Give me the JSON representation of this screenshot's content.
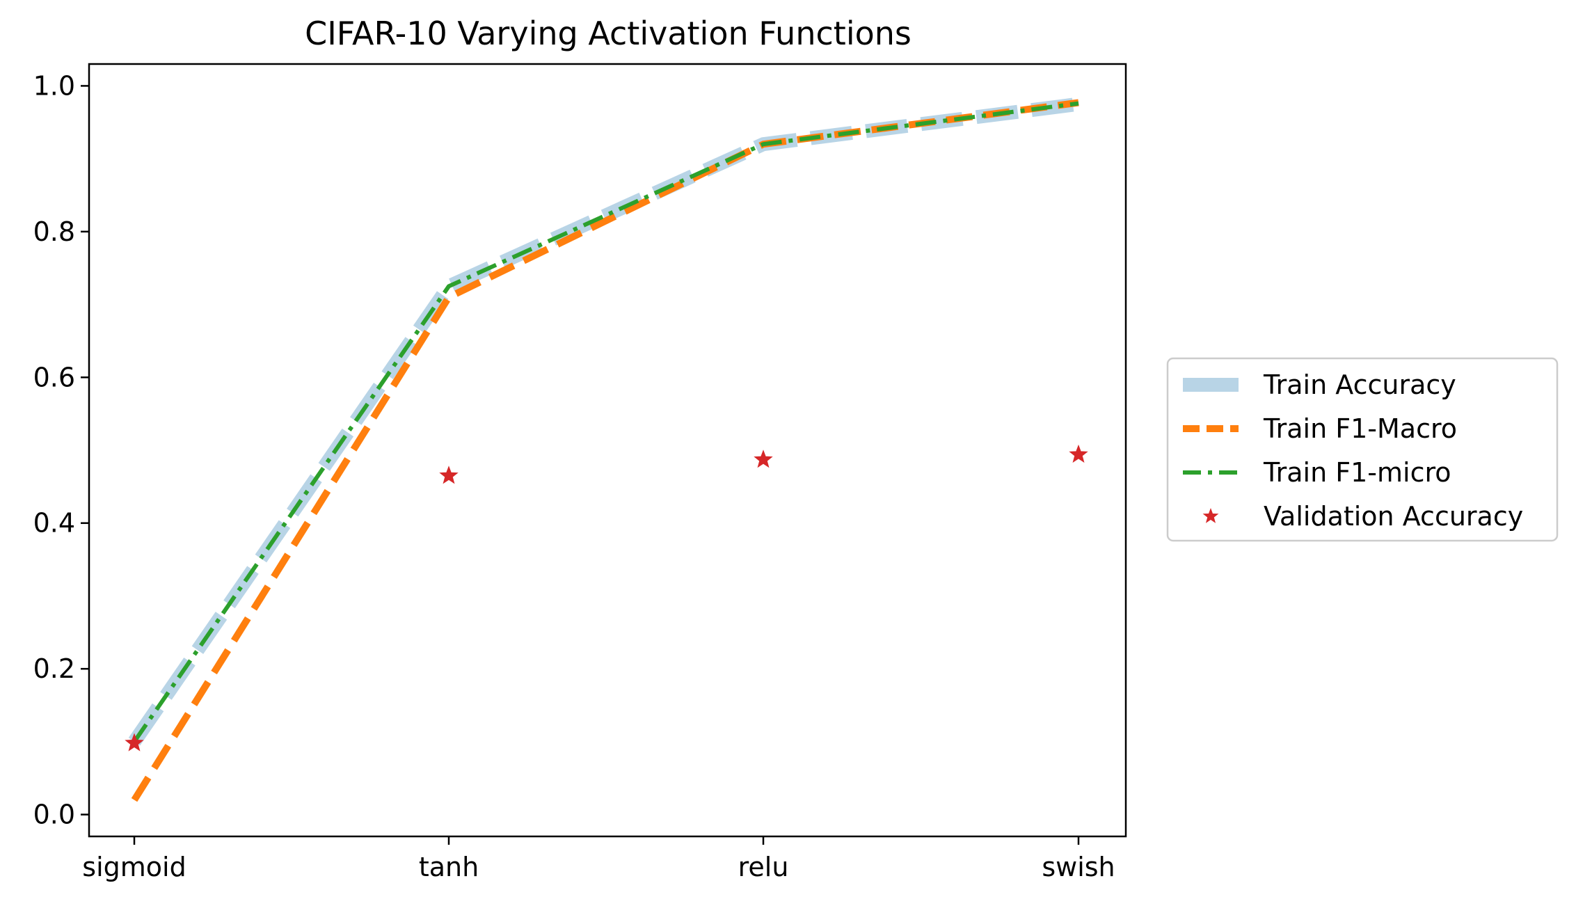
{
  "chart_data": {
    "type": "line",
    "title": "CIFAR-10 Varying Activation Functions",
    "xlabel": "",
    "ylabel": "",
    "categories": [
      "sigmoid",
      "tanh",
      "relu",
      "swish"
    ],
    "ylim": [
      -0.03,
      1.03
    ],
    "yticks": [
      "0.0",
      "0.2",
      "0.4",
      "0.6",
      "0.8",
      "1.0"
    ],
    "grid": false,
    "legend_position": "center-right, outside plot",
    "series": [
      {
        "name": "Train Accuracy",
        "style": "dashed-wide",
        "color": "#b8d4e6",
        "values": [
          0.1,
          0.725,
          0.92,
          0.975
        ]
      },
      {
        "name": "Train F1-Macro",
        "style": "dashed",
        "color": "#ff7f0e",
        "values": [
          0.02,
          0.71,
          0.92,
          0.977
        ]
      },
      {
        "name": "Train F1-micro",
        "style": "dashdot",
        "color": "#2ca02c",
        "values": [
          0.1,
          0.725,
          0.92,
          0.976
        ]
      },
      {
        "name": "Validation Accuracy",
        "style": "marker-star",
        "color": "#d62728",
        "values": [
          0.098,
          0.465,
          0.487,
          0.494
        ]
      }
    ]
  }
}
